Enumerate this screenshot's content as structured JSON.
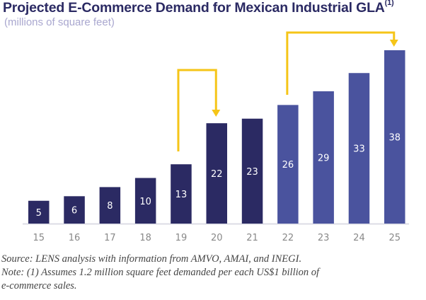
{
  "chart_data": {
    "type": "bar",
    "title": "Projected E-Commerce Demand for Mexican Industrial GLA",
    "title_footnote_marker": "(1)",
    "subtitle": "(millions of square feet)",
    "xlabel": "",
    "ylabel": "",
    "categories": [
      "15",
      "16",
      "17",
      "18",
      "19",
      "20",
      "21",
      "22",
      "23",
      "24",
      "25"
    ],
    "values": [
      5,
      6,
      8,
      10,
      13,
      22,
      23,
      26,
      29,
      33,
      38
    ],
    "data_labels": [
      "5",
      "6",
      "8",
      "10",
      "13",
      "22",
      "23",
      "26",
      "29",
      "33",
      "38"
    ],
    "ylim": [
      0,
      40
    ],
    "grid": false,
    "legend": "none",
    "bar_colors": [
      "#2b2a63",
      "#2b2a63",
      "#2b2a63",
      "#2b2a63",
      "#2b2a63",
      "#2b2a63",
      "#2b2a63",
      "#4a539e",
      "#4a539e",
      "#4a539e",
      "#4a539e"
    ],
    "annotations": [
      {
        "type": "arrow",
        "from_category": "19",
        "to_category": "20",
        "color": "#f5c518"
      },
      {
        "type": "arrow",
        "from_category": "22",
        "to_category": "25",
        "color": "#f5c518"
      }
    ]
  },
  "notes": {
    "source": "Source: LENS analysis with information from AMVO, AMAI, and INEGI.",
    "note_line1": "Note: (1) Assumes 1.2 million square feet demanded per each US$1 billion of",
    "note_line2": "e-commerce sales."
  }
}
